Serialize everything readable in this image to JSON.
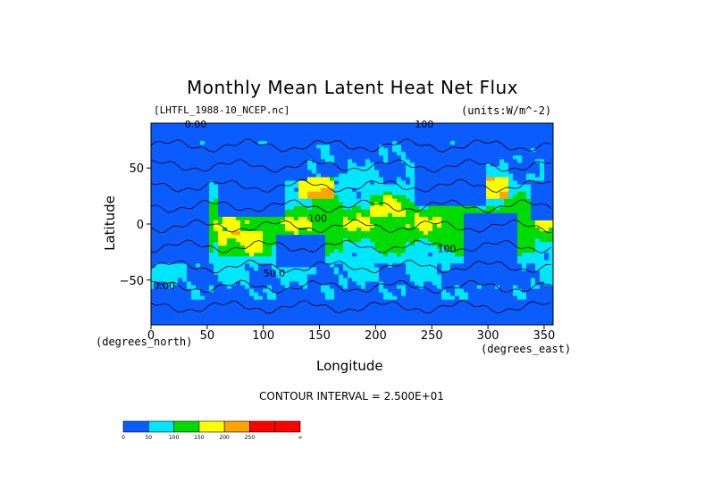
{
  "chart_data": {
    "type": "heatmap",
    "title": "Monthly Mean Latent Heat Net Flux",
    "file_label": "[LHTFL_1988-10_NCEP.nc]",
    "units_label": "(units:W/m^-2)",
    "xlabel": "Longitude",
    "ylabel": "Latitude",
    "x_note": "(degrees_east)",
    "y_note": "(degrees_north)",
    "xlim": [
      0,
      358
    ],
    "ylim": [
      -90,
      90
    ],
    "x_ticks": [
      0,
      50,
      100,
      150,
      200,
      250,
      300,
      350
    ],
    "y_ticks": [
      50,
      0,
      -50
    ],
    "contour_interval_text": "CONTOUR INTERVAL = 2.500E+01",
    "contour_labels": [
      "0.00",
      "100",
      "100",
      "100",
      "50.0",
      "0.00"
    ],
    "colorbar": {
      "bins": [
        {
          "label": "0",
          "color": "#0a5cff"
        },
        {
          "label": "50",
          "color": "#00e6ff"
        },
        {
          "label": "100",
          "color": "#00dc00"
        },
        {
          "label": "150",
          "color": "#ffff00"
        },
        {
          "label": "200",
          "color": "#ffa500"
        },
        {
          "label": "250",
          "color": "#ff0000"
        },
        {
          "label": "",
          "color": "#ff0000"
        }
      ],
      "end_label": "∞"
    }
  }
}
